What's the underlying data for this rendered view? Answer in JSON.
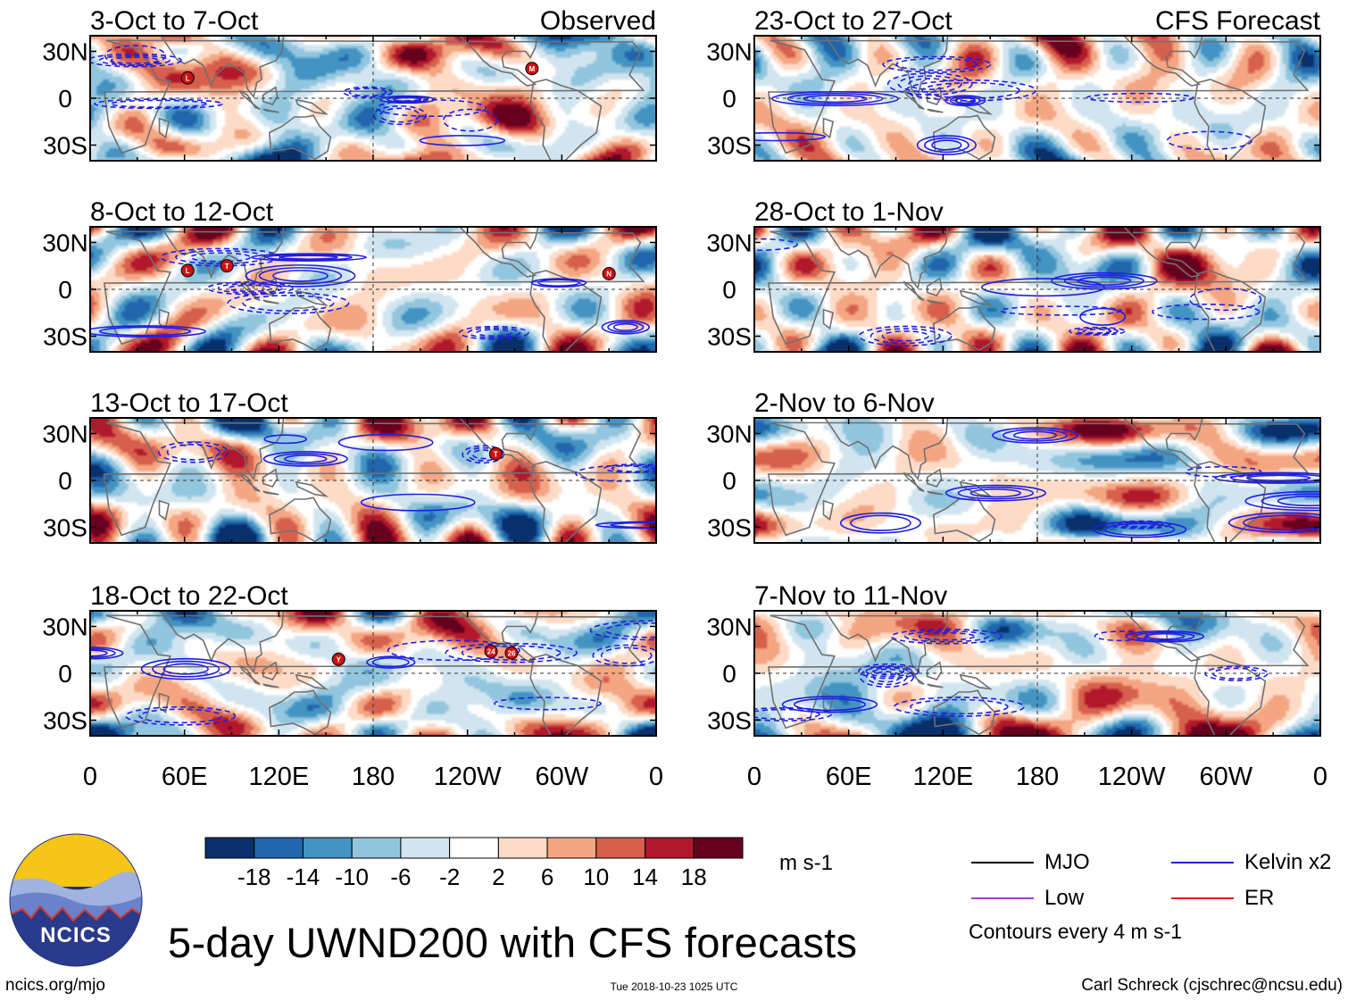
{
  "figure": {
    "title": "5-day UWND200 with CFS forecasts",
    "site": "ncics.org/mjo",
    "timestamp": "Tue 2018-10-23 1025 UTC",
    "credit": "Carl Schreck (cjschrec@ncsu.edu)",
    "logo_text": "NCICS"
  },
  "chart_data": {
    "type": "heatmap",
    "variable": "200-hPa zonal wind anomaly (UWND200)",
    "units": "m s-1",
    "left_column_label": "Observed",
    "right_column_label": "CFS Forecast",
    "x_tick_labels": [
      "0",
      "60E",
      "120E",
      "180",
      "120W",
      "60W",
      "0"
    ],
    "y_tick_labels": [
      "30N",
      "0",
      "30S"
    ],
    "xlim_deg": [
      0,
      360
    ],
    "ylim_deg": [
      -40,
      40
    ],
    "panels": [
      {
        "period": "3-Oct to 7-Oct",
        "kind": "Observed",
        "storms": [
          {
            "lon": 62,
            "lat": 13,
            "label": "L"
          },
          {
            "lon": 281,
            "lat": 19,
            "label": "M"
          }
        ]
      },
      {
        "period": "8-Oct to 12-Oct",
        "kind": "Observed",
        "storms": [
          {
            "lon": 62,
            "lat": 12,
            "label": "L"
          },
          {
            "lon": 87,
            "lat": 15,
            "label": "T"
          },
          {
            "lon": 330,
            "lat": 10,
            "label": "N"
          }
        ]
      },
      {
        "period": "13-Oct to 17-Oct",
        "kind": "Observed",
        "storms": [
          {
            "lon": 258,
            "lat": 17,
            "label": "T"
          }
        ]
      },
      {
        "period": "18-Oct to 22-Oct",
        "kind": "Observed",
        "storms": [
          {
            "lon": 158,
            "lat": 9,
            "label": "Y"
          },
          {
            "lon": 255,
            "lat": 14,
            "label": "24"
          },
          {
            "lon": 268,
            "lat": 13,
            "label": "26"
          }
        ]
      },
      {
        "period": "23-Oct to 27-Oct",
        "kind": "CFS Forecast",
        "storms": []
      },
      {
        "period": "28-Oct to 1-Nov",
        "kind": "CFS Forecast",
        "storms": []
      },
      {
        "period": "2-Nov to 6-Nov",
        "kind": "CFS Forecast",
        "storms": []
      },
      {
        "period": "7-Nov to 11-Nov",
        "kind": "CFS Forecast",
        "storms": []
      }
    ],
    "colorbar": {
      "tick_labels": [
        "-18",
        "-14",
        "-10",
        "-6",
        "-2",
        "2",
        "6",
        "10",
        "14",
        "18"
      ],
      "colors": [
        "#08306b",
        "#2166ac",
        "#4393c3",
        "#92c5de",
        "#d1e5f0",
        "#ffffff",
        "#fddbc7",
        "#f4a582",
        "#d6604d",
        "#b2182b",
        "#67001f"
      ]
    },
    "legend": [
      {
        "label": "MJO",
        "color": "#000000"
      },
      {
        "label": "Kelvin x2",
        "color": "#1f1fe0"
      },
      {
        "label": "Low",
        "color": "#a040e0"
      },
      {
        "label": "ER",
        "color": "#e02020"
      }
    ],
    "contour_note": "Contours every 4 m s-1",
    "colors": {
      "land": "#707070",
      "kelvin": "#1f1fe0",
      "storm": "#cc1111"
    }
  }
}
